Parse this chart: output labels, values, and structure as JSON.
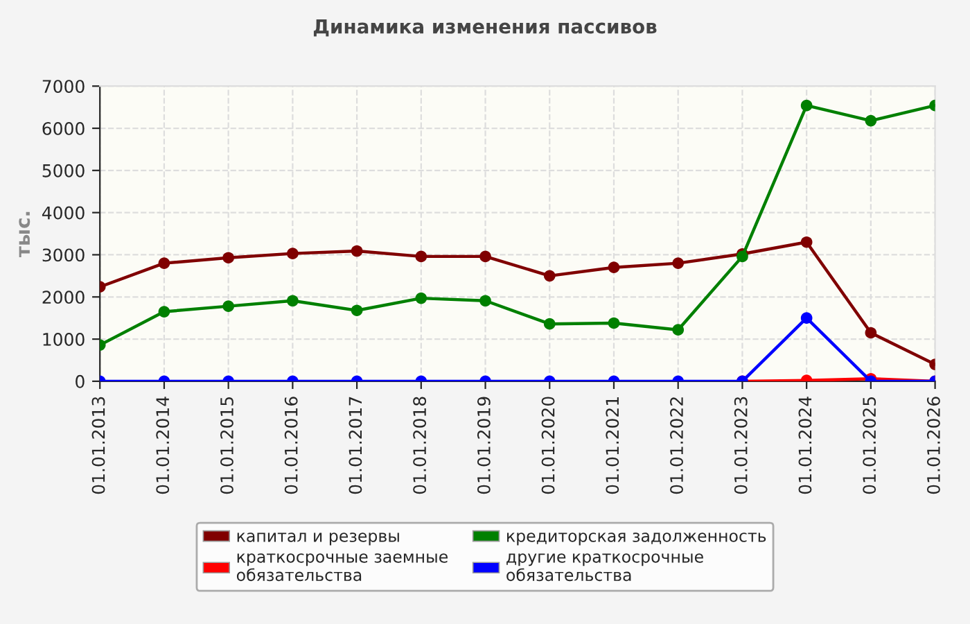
{
  "chart_data": {
    "type": "line",
    "title": "Динамика изменения пассивов",
    "ylabel": "тыс.",
    "categories": [
      "01.01.2013",
      "01.01.2014",
      "01.01.2015",
      "01.01.2016",
      "01.01.2017",
      "01.01.2018",
      "01.01.2019",
      "01.01.2020",
      "01.01.2021",
      "01.01.2022",
      "01.01.2023",
      "01.01.2024",
      "01.01.2025",
      "01.01.2026"
    ],
    "series": [
      {
        "name": "капитал и резервы",
        "color": "#800000",
        "values": [
          2240,
          2800,
          2930,
          3030,
          3090,
          2960,
          2960,
          2500,
          2700,
          2800,
          3020,
          3300,
          1150,
          400
        ]
      },
      {
        "name": "кредиторская задолженность",
        "color": "#008000",
        "values": [
          860,
          1650,
          1780,
          1910,
          1680,
          1970,
          1910,
          1360,
          1380,
          1220,
          2960,
          6540,
          6180,
          6540
        ]
      },
      {
        "name": "краткосрочные заемные обязательства",
        "color": "#ff0000",
        "values": [
          null,
          null,
          null,
          null,
          null,
          null,
          null,
          null,
          null,
          null,
          0,
          20,
          60,
          0
        ]
      },
      {
        "name": "другие краткосрочные обязательства",
        "color": "#0000ff",
        "values": [
          0,
          0,
          0,
          0,
          0,
          0,
          0,
          0,
          0,
          0,
          0,
          1500,
          0,
          0
        ]
      }
    ],
    "ylim": [
      0,
      7000
    ],
    "yticks": [
      0,
      1000,
      2000,
      3000,
      4000,
      5000,
      6000,
      7000
    ],
    "grid": true,
    "legend": "bottom",
    "marker": "circle",
    "line_style": "solid"
  }
}
